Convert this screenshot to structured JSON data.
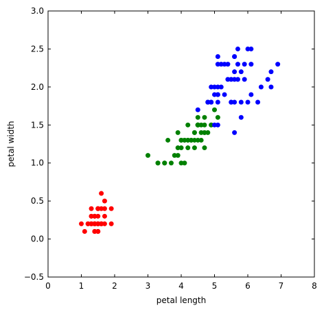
{
  "chart_data": {
    "type": "scatter",
    "xlabel": "petal length",
    "ylabel": "petal width",
    "xlim": [
      0,
      8
    ],
    "ylim": [
      -0.5,
      3.0
    ],
    "xticks": [
      "0",
      "1",
      "2",
      "3",
      "4",
      "5",
      "6",
      "7",
      "8"
    ],
    "yticks": [
      "−0.5",
      "0.0",
      "0.5",
      "1.0",
      "1.5",
      "2.0",
      "2.5",
      "3.0"
    ],
    "grid": false,
    "series": [
      {
        "color": "#ff0000",
        "points": [
          [
            1.4,
            0.2
          ],
          [
            1.4,
            0.2
          ],
          [
            1.3,
            0.2
          ],
          [
            1.5,
            0.2
          ],
          [
            1.4,
            0.2
          ],
          [
            1.7,
            0.4
          ],
          [
            1.4,
            0.3
          ],
          [
            1.5,
            0.2
          ],
          [
            1.4,
            0.2
          ],
          [
            1.5,
            0.1
          ],
          [
            1.5,
            0.2
          ],
          [
            1.6,
            0.2
          ],
          [
            1.4,
            0.1
          ],
          [
            1.1,
            0.1
          ],
          [
            1.2,
            0.2
          ],
          [
            1.5,
            0.4
          ],
          [
            1.3,
            0.4
          ],
          [
            1.4,
            0.3
          ],
          [
            1.7,
            0.3
          ],
          [
            1.5,
            0.3
          ],
          [
            1.7,
            0.2
          ],
          [
            1.5,
            0.4
          ],
          [
            1.0,
            0.2
          ],
          [
            1.7,
            0.5
          ],
          [
            1.9,
            0.2
          ],
          [
            1.6,
            0.2
          ],
          [
            1.6,
            0.4
          ],
          [
            1.5,
            0.2
          ],
          [
            1.4,
            0.2
          ],
          [
            1.6,
            0.2
          ],
          [
            1.6,
            0.2
          ],
          [
            1.5,
            0.4
          ],
          [
            1.5,
            0.1
          ],
          [
            1.4,
            0.2
          ],
          [
            1.5,
            0.2
          ],
          [
            1.2,
            0.2
          ],
          [
            1.3,
            0.2
          ],
          [
            1.4,
            0.1
          ],
          [
            1.3,
            0.2
          ],
          [
            1.5,
            0.2
          ],
          [
            1.3,
            0.3
          ],
          [
            1.3,
            0.3
          ],
          [
            1.3,
            0.2
          ],
          [
            1.6,
            0.6
          ],
          [
            1.9,
            0.4
          ],
          [
            1.4,
            0.3
          ],
          [
            1.6,
            0.2
          ],
          [
            1.4,
            0.2
          ],
          [
            1.5,
            0.2
          ],
          [
            1.4,
            0.2
          ]
        ]
      },
      {
        "color": "#008000",
        "points": [
          [
            4.7,
            1.4
          ],
          [
            4.5,
            1.5
          ],
          [
            4.9,
            1.5
          ],
          [
            4.0,
            1.3
          ],
          [
            4.6,
            1.5
          ],
          [
            4.5,
            1.3
          ],
          [
            4.7,
            1.6
          ],
          [
            3.3,
            1.0
          ],
          [
            4.6,
            1.3
          ],
          [
            3.9,
            1.4
          ],
          [
            3.5,
            1.0
          ],
          [
            4.2,
            1.5
          ],
          [
            4.0,
            1.0
          ],
          [
            4.7,
            1.4
          ],
          [
            3.6,
            1.3
          ],
          [
            4.4,
            1.4
          ],
          [
            4.5,
            1.5
          ],
          [
            4.1,
            1.0
          ],
          [
            4.5,
            1.5
          ],
          [
            3.9,
            1.1
          ],
          [
            4.8,
            1.8
          ],
          [
            4.0,
            1.3
          ],
          [
            4.9,
            1.5
          ],
          [
            4.7,
            1.2
          ],
          [
            4.3,
            1.3
          ],
          [
            4.4,
            1.4
          ],
          [
            4.8,
            1.4
          ],
          [
            5.0,
            1.7
          ],
          [
            4.5,
            1.5
          ],
          [
            3.5,
            1.0
          ],
          [
            3.8,
            1.1
          ],
          [
            3.7,
            1.0
          ],
          [
            3.9,
            1.2
          ],
          [
            5.1,
            1.6
          ],
          [
            4.5,
            1.5
          ],
          [
            4.5,
            1.6
          ],
          [
            4.7,
            1.5
          ],
          [
            4.4,
            1.3
          ],
          [
            4.1,
            1.3
          ],
          [
            4.0,
            1.3
          ],
          [
            4.4,
            1.2
          ],
          [
            4.6,
            1.4
          ],
          [
            4.0,
            1.2
          ],
          [
            3.3,
            1.0
          ],
          [
            4.2,
            1.3
          ],
          [
            4.2,
            1.2
          ],
          [
            4.2,
            1.3
          ],
          [
            4.3,
            1.3
          ],
          [
            3.0,
            1.1
          ],
          [
            4.1,
            1.3
          ]
        ]
      },
      {
        "color": "#0000ff",
        "points": [
          [
            6.0,
            2.5
          ],
          [
            5.1,
            1.9
          ],
          [
            5.9,
            2.1
          ],
          [
            5.6,
            1.8
          ],
          [
            5.8,
            2.2
          ],
          [
            6.6,
            2.1
          ],
          [
            4.5,
            1.7
          ],
          [
            6.3,
            1.8
          ],
          [
            5.8,
            1.8
          ],
          [
            6.1,
            2.5
          ],
          [
            5.1,
            2.0
          ],
          [
            5.3,
            1.9
          ],
          [
            5.5,
            2.1
          ],
          [
            5.0,
            2.0
          ],
          [
            5.1,
            2.4
          ],
          [
            5.3,
            2.3
          ],
          [
            5.5,
            1.8
          ],
          [
            6.7,
            2.2
          ],
          [
            6.9,
            2.3
          ],
          [
            5.0,
            1.5
          ],
          [
            5.7,
            2.3
          ],
          [
            4.9,
            2.0
          ],
          [
            6.7,
            2.0
          ],
          [
            4.9,
            1.8
          ],
          [
            5.7,
            2.1
          ],
          [
            6.0,
            1.8
          ],
          [
            4.8,
            1.8
          ],
          [
            4.9,
            1.8
          ],
          [
            5.6,
            2.1
          ],
          [
            5.8,
            1.6
          ],
          [
            6.1,
            1.9
          ],
          [
            6.4,
            2.0
          ],
          [
            5.6,
            2.2
          ],
          [
            5.1,
            1.5
          ],
          [
            5.6,
            1.4
          ],
          [
            6.1,
            2.3
          ],
          [
            5.6,
            2.4
          ],
          [
            5.5,
            1.8
          ],
          [
            4.8,
            1.8
          ],
          [
            5.4,
            2.1
          ],
          [
            5.6,
            2.4
          ],
          [
            5.1,
            2.3
          ],
          [
            5.1,
            1.9
          ],
          [
            5.9,
            2.3
          ],
          [
            5.7,
            2.5
          ],
          [
            5.2,
            2.3
          ],
          [
            5.0,
            1.9
          ],
          [
            5.2,
            2.0
          ],
          [
            5.4,
            2.3
          ],
          [
            5.1,
            1.8
          ]
        ]
      }
    ]
  }
}
